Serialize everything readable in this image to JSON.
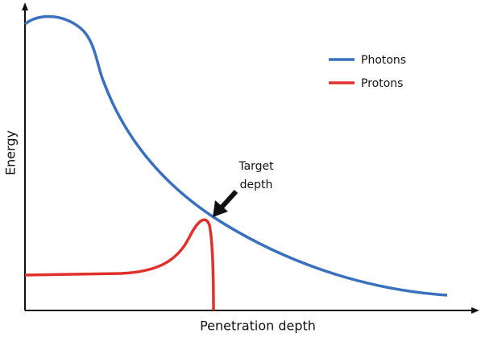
{
  "axes": {
    "x_label": "Penetration depth",
    "y_label": "Energy"
  },
  "legend": [
    {
      "label": "Photons"
    },
    {
      "label": "Protons"
    }
  ],
  "annotation": {
    "lines": [
      "Target",
      "depth"
    ]
  }
}
